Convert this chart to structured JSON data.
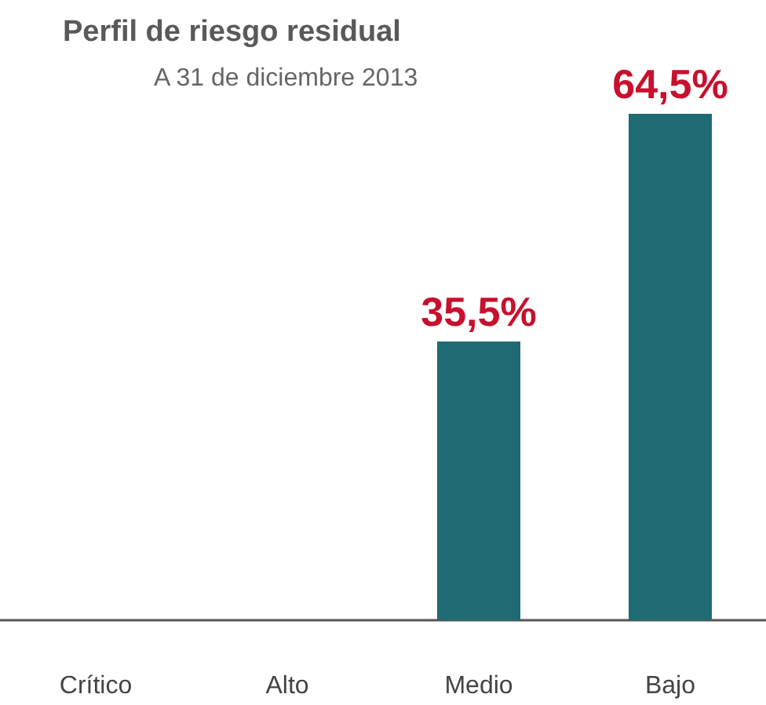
{
  "chart_data": {
    "type": "bar",
    "title": "Perfil de riesgo residual",
    "subtitle": "A 31 de diciembre 2013",
    "categories": [
      "Crítico",
      "Alto",
      "Medio",
      "Bajo"
    ],
    "values": [
      0,
      0,
      35.5,
      64.5
    ],
    "color": "#1e6b73",
    "value_labels": [
      null,
      null,
      "35,5%",
      "64,5%"
    ]
  }
}
